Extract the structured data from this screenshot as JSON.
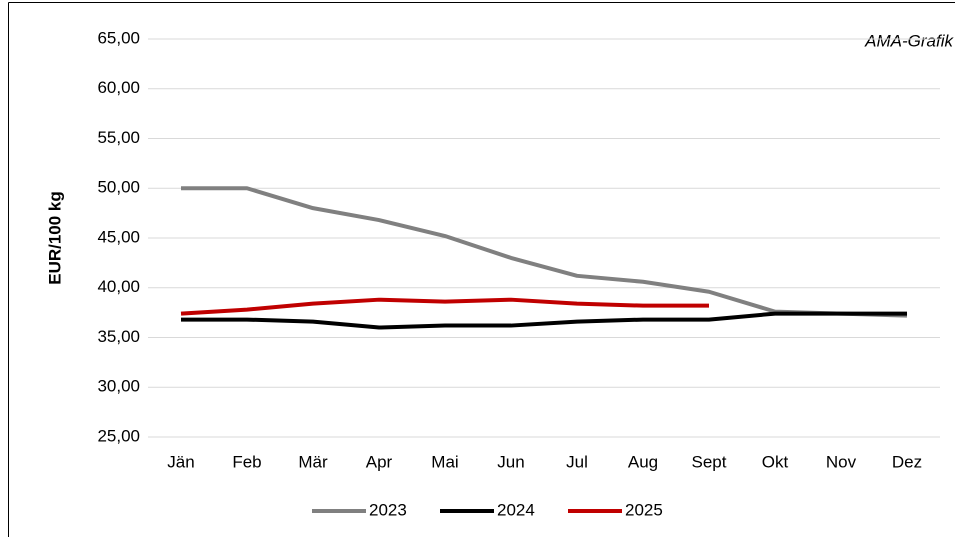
{
  "chart_data": {
    "type": "line",
    "annotation": "AMA-Grafik",
    "y_label": "EUR/100 kg",
    "categories": [
      "Jän",
      "Feb",
      "Mär",
      "Apr",
      "Mai",
      "Jun",
      "Jul",
      "Aug",
      "Sept",
      "Okt",
      "Nov",
      "Dez"
    ],
    "series": [
      {
        "name": "2023",
        "color": "#808080",
        "values": [
          50.0,
          50.0,
          48.0,
          46.8,
          45.2,
          43.0,
          41.2,
          40.6,
          39.6,
          37.6,
          37.4,
          37.2
        ]
      },
      {
        "name": "2024",
        "color": "#000000",
        "values": [
          36.8,
          36.8,
          36.6,
          36.0,
          36.2,
          36.2,
          36.6,
          36.8,
          36.8,
          37.4,
          37.4,
          37.4
        ]
      },
      {
        "name": "2025",
        "color": "#c00000",
        "values": [
          37.4,
          37.8,
          38.4,
          38.8,
          38.6,
          38.8,
          38.4,
          38.2,
          38.2,
          null,
          null,
          null
        ]
      }
    ],
    "ylim": [
      25,
      65
    ],
    "yticks": [
      {
        "value": 25,
        "label": "25,00"
      },
      {
        "value": 30,
        "label": "30,00"
      },
      {
        "value": 35,
        "label": "35,00"
      },
      {
        "value": 40,
        "label": "40,00"
      },
      {
        "value": 45,
        "label": "45,00"
      },
      {
        "value": 50,
        "label": "50,00"
      },
      {
        "value": 55,
        "label": "55,00"
      },
      {
        "value": 60,
        "label": "60,00"
      },
      {
        "value": 65,
        "label": "65,00"
      }
    ],
    "grid": true,
    "legend": "bottom"
  }
}
